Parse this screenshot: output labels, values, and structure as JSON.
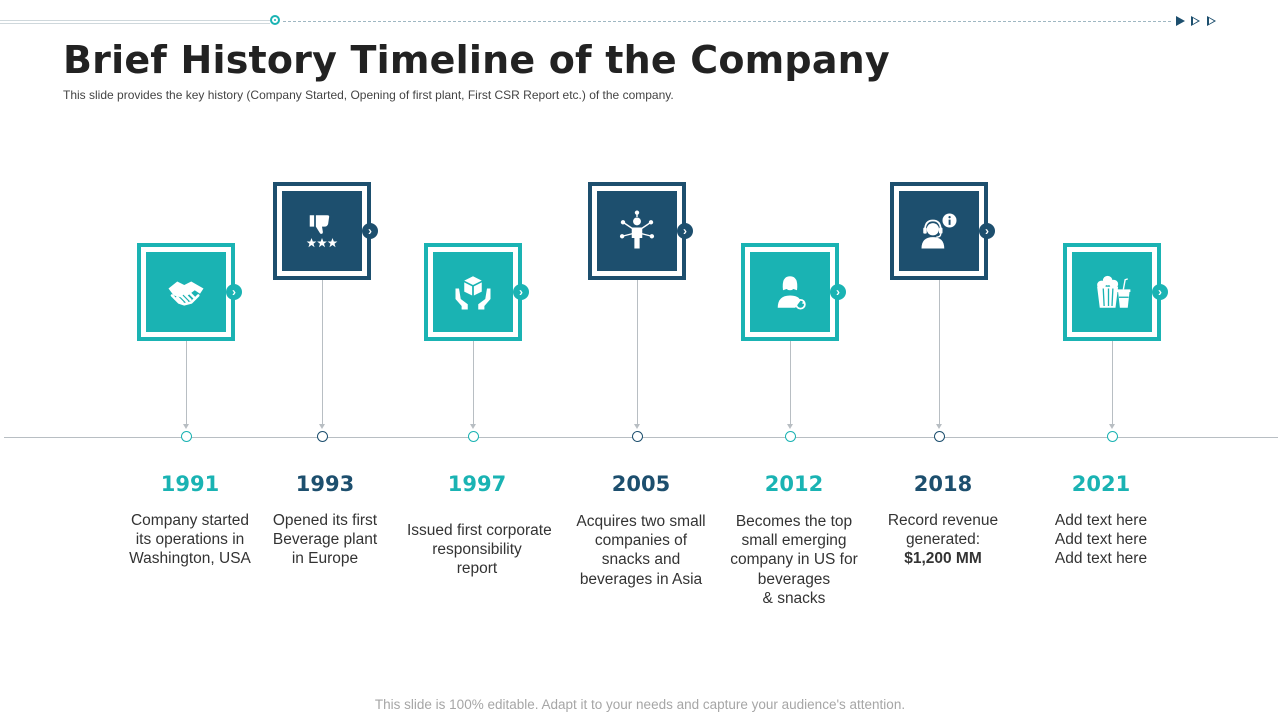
{
  "header": {
    "title": "Brief History Timeline of the Company",
    "subtitle": "This slide provides  the key history (Company Started, Opening of first plant, First CSR Report etc.) of the company."
  },
  "colors": {
    "teal": "#1ab3b3",
    "navy": "#1d4f6e",
    "axis": "#b8bec3",
    "text": "#333333",
    "footer": "#a6a6a6"
  },
  "milestones": [
    {
      "year": "1991",
      "color": "teal",
      "icon": "handshake-icon",
      "lines": [
        "Company started",
        "its operations in",
        "Washington, USA"
      ]
    },
    {
      "year": "1993",
      "color": "navy",
      "icon": "thumbs-down-rating-icon",
      "lines": [
        "Opened its first",
        "Beverage plant",
        "in Europe"
      ]
    },
    {
      "year": "1997",
      "color": "teal",
      "icon": "hands-holding-box-icon",
      "lines": [
        "Issued first corporate",
        "responsibility",
        "report"
      ]
    },
    {
      "year": "2005",
      "color": "navy",
      "icon": "person-network-icon",
      "lines": [
        "Acquires two small",
        "companies of",
        "snacks and",
        "beverages in Asia"
      ]
    },
    {
      "year": "2012",
      "color": "teal",
      "icon": "woman-refresh-icon",
      "lines": [
        "Becomes the top",
        "small emerging",
        "company in US for",
        "beverages",
        "& snacks"
      ]
    },
    {
      "year": "2018",
      "color": "navy",
      "icon": "support-agent-info-icon",
      "lines": [
        "Record revenue",
        "generated:",
        "$1,200 MM"
      ]
    },
    {
      "year": "2021",
      "color": "teal",
      "icon": "popcorn-drink-icon",
      "lines": [
        "Add text here",
        "Add text here",
        "Add text here"
      ]
    }
  ],
  "footer": "This slide is 100% editable. Adapt it to your needs and capture your audience's attention."
}
